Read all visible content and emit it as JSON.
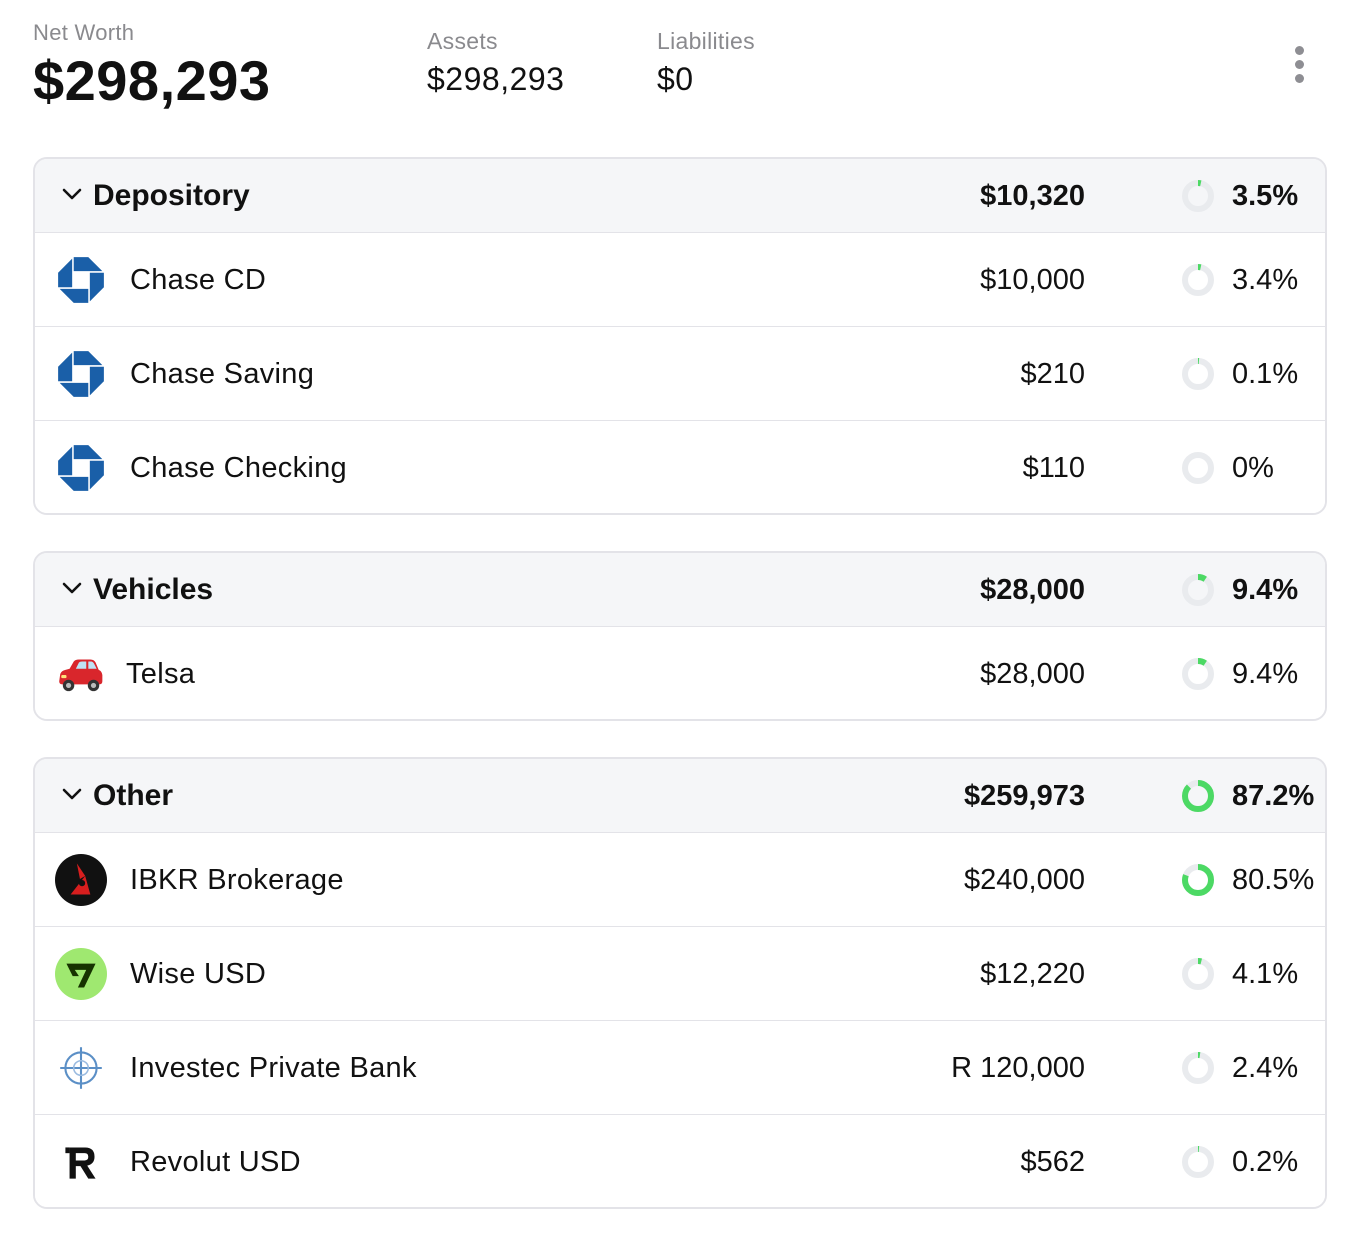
{
  "summary": {
    "net_worth_label": "Net Worth",
    "net_worth_value": "$298,293",
    "assets_label": "Assets",
    "assets_value": "$298,293",
    "liabilities_label": "Liabilities",
    "liabilities_value": "$0"
  },
  "colors": {
    "pie_fill": "#4cd964",
    "pie_track": "#e9ebee",
    "chase_blue": "#1a5fa8",
    "wise_green": "#9fe870",
    "ibkr_red": "#d81e1e"
  },
  "groups": [
    {
      "name": "Depository",
      "total": "$10,320",
      "share": 0.035,
      "percent": "3.5%",
      "accounts": [
        {
          "name": "Chase CD",
          "amount": "$10,000",
          "share": 0.034,
          "percent": "3.4%",
          "icon": "chase-logo-icon"
        },
        {
          "name": "Chase Saving",
          "amount": "$210",
          "share": 0.001,
          "percent": "0.1%",
          "icon": "chase-logo-icon"
        },
        {
          "name": "Chase Checking",
          "amount": "$110",
          "share": 0.0,
          "percent": "0%",
          "icon": "chase-logo-icon"
        }
      ]
    },
    {
      "name": "Vehicles",
      "total": "$28,000",
      "share": 0.094,
      "percent": "9.4%",
      "accounts": [
        {
          "name": "Telsa",
          "amount": "$28,000",
          "share": 0.094,
          "percent": "9.4%",
          "icon": "red-car-icon"
        }
      ]
    },
    {
      "name": "Other",
      "total": "$259,973",
      "share": 0.872,
      "percent": "87.2%",
      "accounts": [
        {
          "name": "IBKR Brokerage",
          "amount": "$240,000",
          "share": 0.805,
          "percent": "80.5%",
          "icon": "ibkr-logo-icon"
        },
        {
          "name": "Wise USD",
          "amount": "$12,220",
          "share": 0.041,
          "percent": "4.1%",
          "icon": "wise-logo-icon"
        },
        {
          "name": "Investec Private Bank",
          "amount": "R 120,000",
          "share": 0.024,
          "percent": "2.4%",
          "icon": "investec-logo-icon"
        },
        {
          "name": "Revolut USD",
          "amount": "$562",
          "share": 0.002,
          "percent": "0.2%",
          "icon": "revolut-logo-icon"
        }
      ]
    }
  ]
}
